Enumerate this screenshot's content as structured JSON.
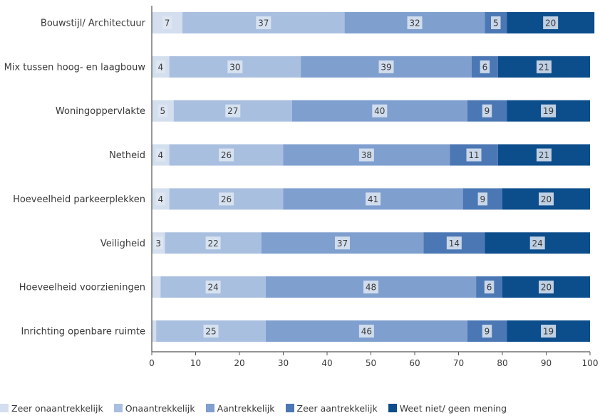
{
  "chart_data": {
    "type": "bar",
    "orientation": "horizontal",
    "stacked": true,
    "title": "",
    "xlabel": "",
    "ylabel": "",
    "xlim": [
      0,
      100
    ],
    "xticks": [
      0,
      10,
      20,
      30,
      40,
      50,
      60,
      70,
      80,
      90,
      100
    ],
    "grid": false,
    "legend_position": "bottom",
    "categories": [
      "Bouwstijl/ Architectuur",
      "Mix tussen hoog- en laagbouw",
      "Woningoppervlakte",
      "Netheid",
      "Hoeveelheid parkeerplekken",
      "Veiligheid",
      "Hoeveelheid voorzieningen",
      "Inrichting openbare ruimte"
    ],
    "series": [
      {
        "name": "Zeer onaantrekkelijk",
        "color": "#d3deee",
        "values": [
          7,
          4,
          5,
          4,
          4,
          3,
          2,
          1
        ],
        "labels": [
          "7",
          "4",
          "5",
          "4",
          "4",
          "3",
          "",
          ""
        ]
      },
      {
        "name": "Onaantrekkelijk",
        "color": "#a9bfe0",
        "values": [
          37,
          30,
          27,
          26,
          26,
          22,
          24,
          25
        ],
        "labels": [
          "37",
          "30",
          "27",
          "26",
          "26",
          "22",
          "24",
          "25"
        ]
      },
      {
        "name": "Aantrekkelijk",
        "color": "#7f9fcf",
        "values": [
          32,
          39,
          40,
          38,
          41,
          37,
          48,
          46
        ],
        "labels": [
          "32",
          "39",
          "40",
          "38",
          "41",
          "37",
          "48",
          "46"
        ]
      },
      {
        "name": "Zeer aantrekkelijk",
        "color": "#4b78b4",
        "values": [
          5,
          6,
          9,
          11,
          9,
          14,
          6,
          9
        ],
        "labels": [
          "5",
          "6",
          "9",
          "11",
          "9",
          "14",
          "6",
          "9"
        ]
      },
      {
        "name": "Weet niet/ geen mening",
        "color": "#0c4d8c",
        "values": [
          20,
          21,
          19,
          21,
          20,
          24,
          20,
          19
        ],
        "labels": [
          "20",
          "21",
          "19",
          "21",
          "20",
          "24",
          "20",
          "19"
        ]
      }
    ]
  }
}
